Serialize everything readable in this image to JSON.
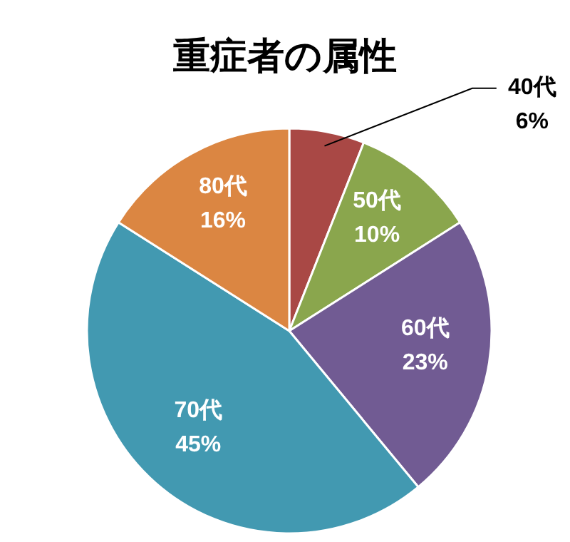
{
  "chart_data": {
    "type": "pie",
    "title": "重症者の属性",
    "categories": [
      "40代",
      "50代",
      "60代",
      "70代",
      "80代"
    ],
    "values": [
      6,
      10,
      23,
      45,
      16
    ],
    "value_labels": [
      "6%",
      "10%",
      "23%",
      "45%",
      "16%"
    ],
    "colors": [
      "#a94845",
      "#8aa64d",
      "#715b93",
      "#4299b1",
      "#db8642"
    ]
  }
}
